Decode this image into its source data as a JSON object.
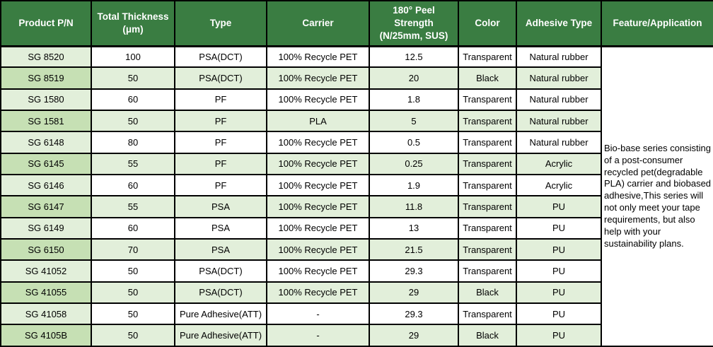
{
  "colors": {
    "header_bg": "#3A7D42",
    "header_text": "#FFFFFF",
    "row_alt_bg": "#E2EFDA",
    "first_col_bg": "#E2EFDA",
    "first_col_alt_bg": "#C6E0B4",
    "border": "#000000"
  },
  "table": {
    "columns": [
      {
        "key": "pn",
        "label": "Product P/N"
      },
      {
        "key": "thickness",
        "label": "Total Thickness\n(μm)"
      },
      {
        "key": "type",
        "label": "Type"
      },
      {
        "key": "carrier",
        "label": "Carrier"
      },
      {
        "key": "peel",
        "label": "180° Peel\nStrength\n(N/25mm, SUS)"
      },
      {
        "key": "color",
        "label": "Color"
      },
      {
        "key": "adhesive",
        "label": "Adhesive Type"
      },
      {
        "key": "feature",
        "label": "Feature/Application"
      }
    ],
    "rows": [
      {
        "pn": "SG 8520",
        "thickness": "100",
        "type": "PSA(DCT)",
        "carrier": "100% Recycle PET",
        "peel": "12.5",
        "color": "Transparent",
        "adhesive": "Natural rubber"
      },
      {
        "pn": "SG 8519",
        "thickness": "50",
        "type": "PSA(DCT)",
        "carrier": "100% Recycle PET",
        "peel": "20",
        "color": "Black",
        "adhesive": "Natural rubber"
      },
      {
        "pn": "SG 1580",
        "thickness": "60",
        "type": "PF",
        "carrier": "100% Recycle PET",
        "peel": "1.8",
        "color": "Transparent",
        "adhesive": "Natural rubber"
      },
      {
        "pn": "SG 1581",
        "thickness": "50",
        "type": "PF",
        "carrier": "PLA",
        "peel": "5",
        "color": "Transparent",
        "adhesive": "Natural rubber"
      },
      {
        "pn": "SG 6148",
        "thickness": "80",
        "type": "PF",
        "carrier": "100% Recycle PET",
        "peel": "0.5",
        "color": "Transparent",
        "adhesive": "Natural rubber"
      },
      {
        "pn": "SG 6145",
        "thickness": "55",
        "type": "PF",
        "carrier": "100% Recycle PET",
        "peel": "0.25",
        "color": "Transparent",
        "adhesive": "Acrylic"
      },
      {
        "pn": "SG 6146",
        "thickness": "60",
        "type": "PF",
        "carrier": "100% Recycle PET",
        "peel": "1.9",
        "color": "Transparent",
        "adhesive": "Acrylic"
      },
      {
        "pn": "SG 6147",
        "thickness": "55",
        "type": "PSA",
        "carrier": "100% Recycle PET",
        "peel": "11.8",
        "color": "Transparent",
        "adhesive": "PU"
      },
      {
        "pn": "SG 6149",
        "thickness": "60",
        "type": "PSA",
        "carrier": "100% Recycle PET",
        "peel": "13",
        "color": "Transparent",
        "adhesive": "PU"
      },
      {
        "pn": "SG 6150",
        "thickness": "70",
        "type": "PSA",
        "carrier": "100% Recycle PET",
        "peel": "21.5",
        "color": "Transparent",
        "adhesive": "PU"
      },
      {
        "pn": "SG 41052",
        "thickness": "50",
        "type": "PSA(DCT)",
        "carrier": "100% Recycle PET",
        "peel": "29.3",
        "color": "Transparent",
        "adhesive": "PU"
      },
      {
        "pn": "SG 41055",
        "thickness": "50",
        "type": "PSA(DCT)",
        "carrier": "100% Recycle PET",
        "peel": "29",
        "color": "Black",
        "adhesive": "PU"
      },
      {
        "pn": "SG 41058",
        "thickness": "50",
        "type": "Pure Adhesive(ATT)",
        "carrier": "-",
        "peel": "29.3",
        "color": "Transparent",
        "adhesive": "PU"
      },
      {
        "pn": "SG 4105B",
        "thickness": "50",
        "type": "Pure Adhesive(ATT)",
        "carrier": "-",
        "peel": "29",
        "color": "Black",
        "adhesive": "PU"
      }
    ],
    "feature_text": "Bio-base series consisting of a post-consumer recycled pet(degradable PLA) carrier and  biobased adhesive,This series will not only meet your tape requirements, but also help with your sustainability plans."
  }
}
